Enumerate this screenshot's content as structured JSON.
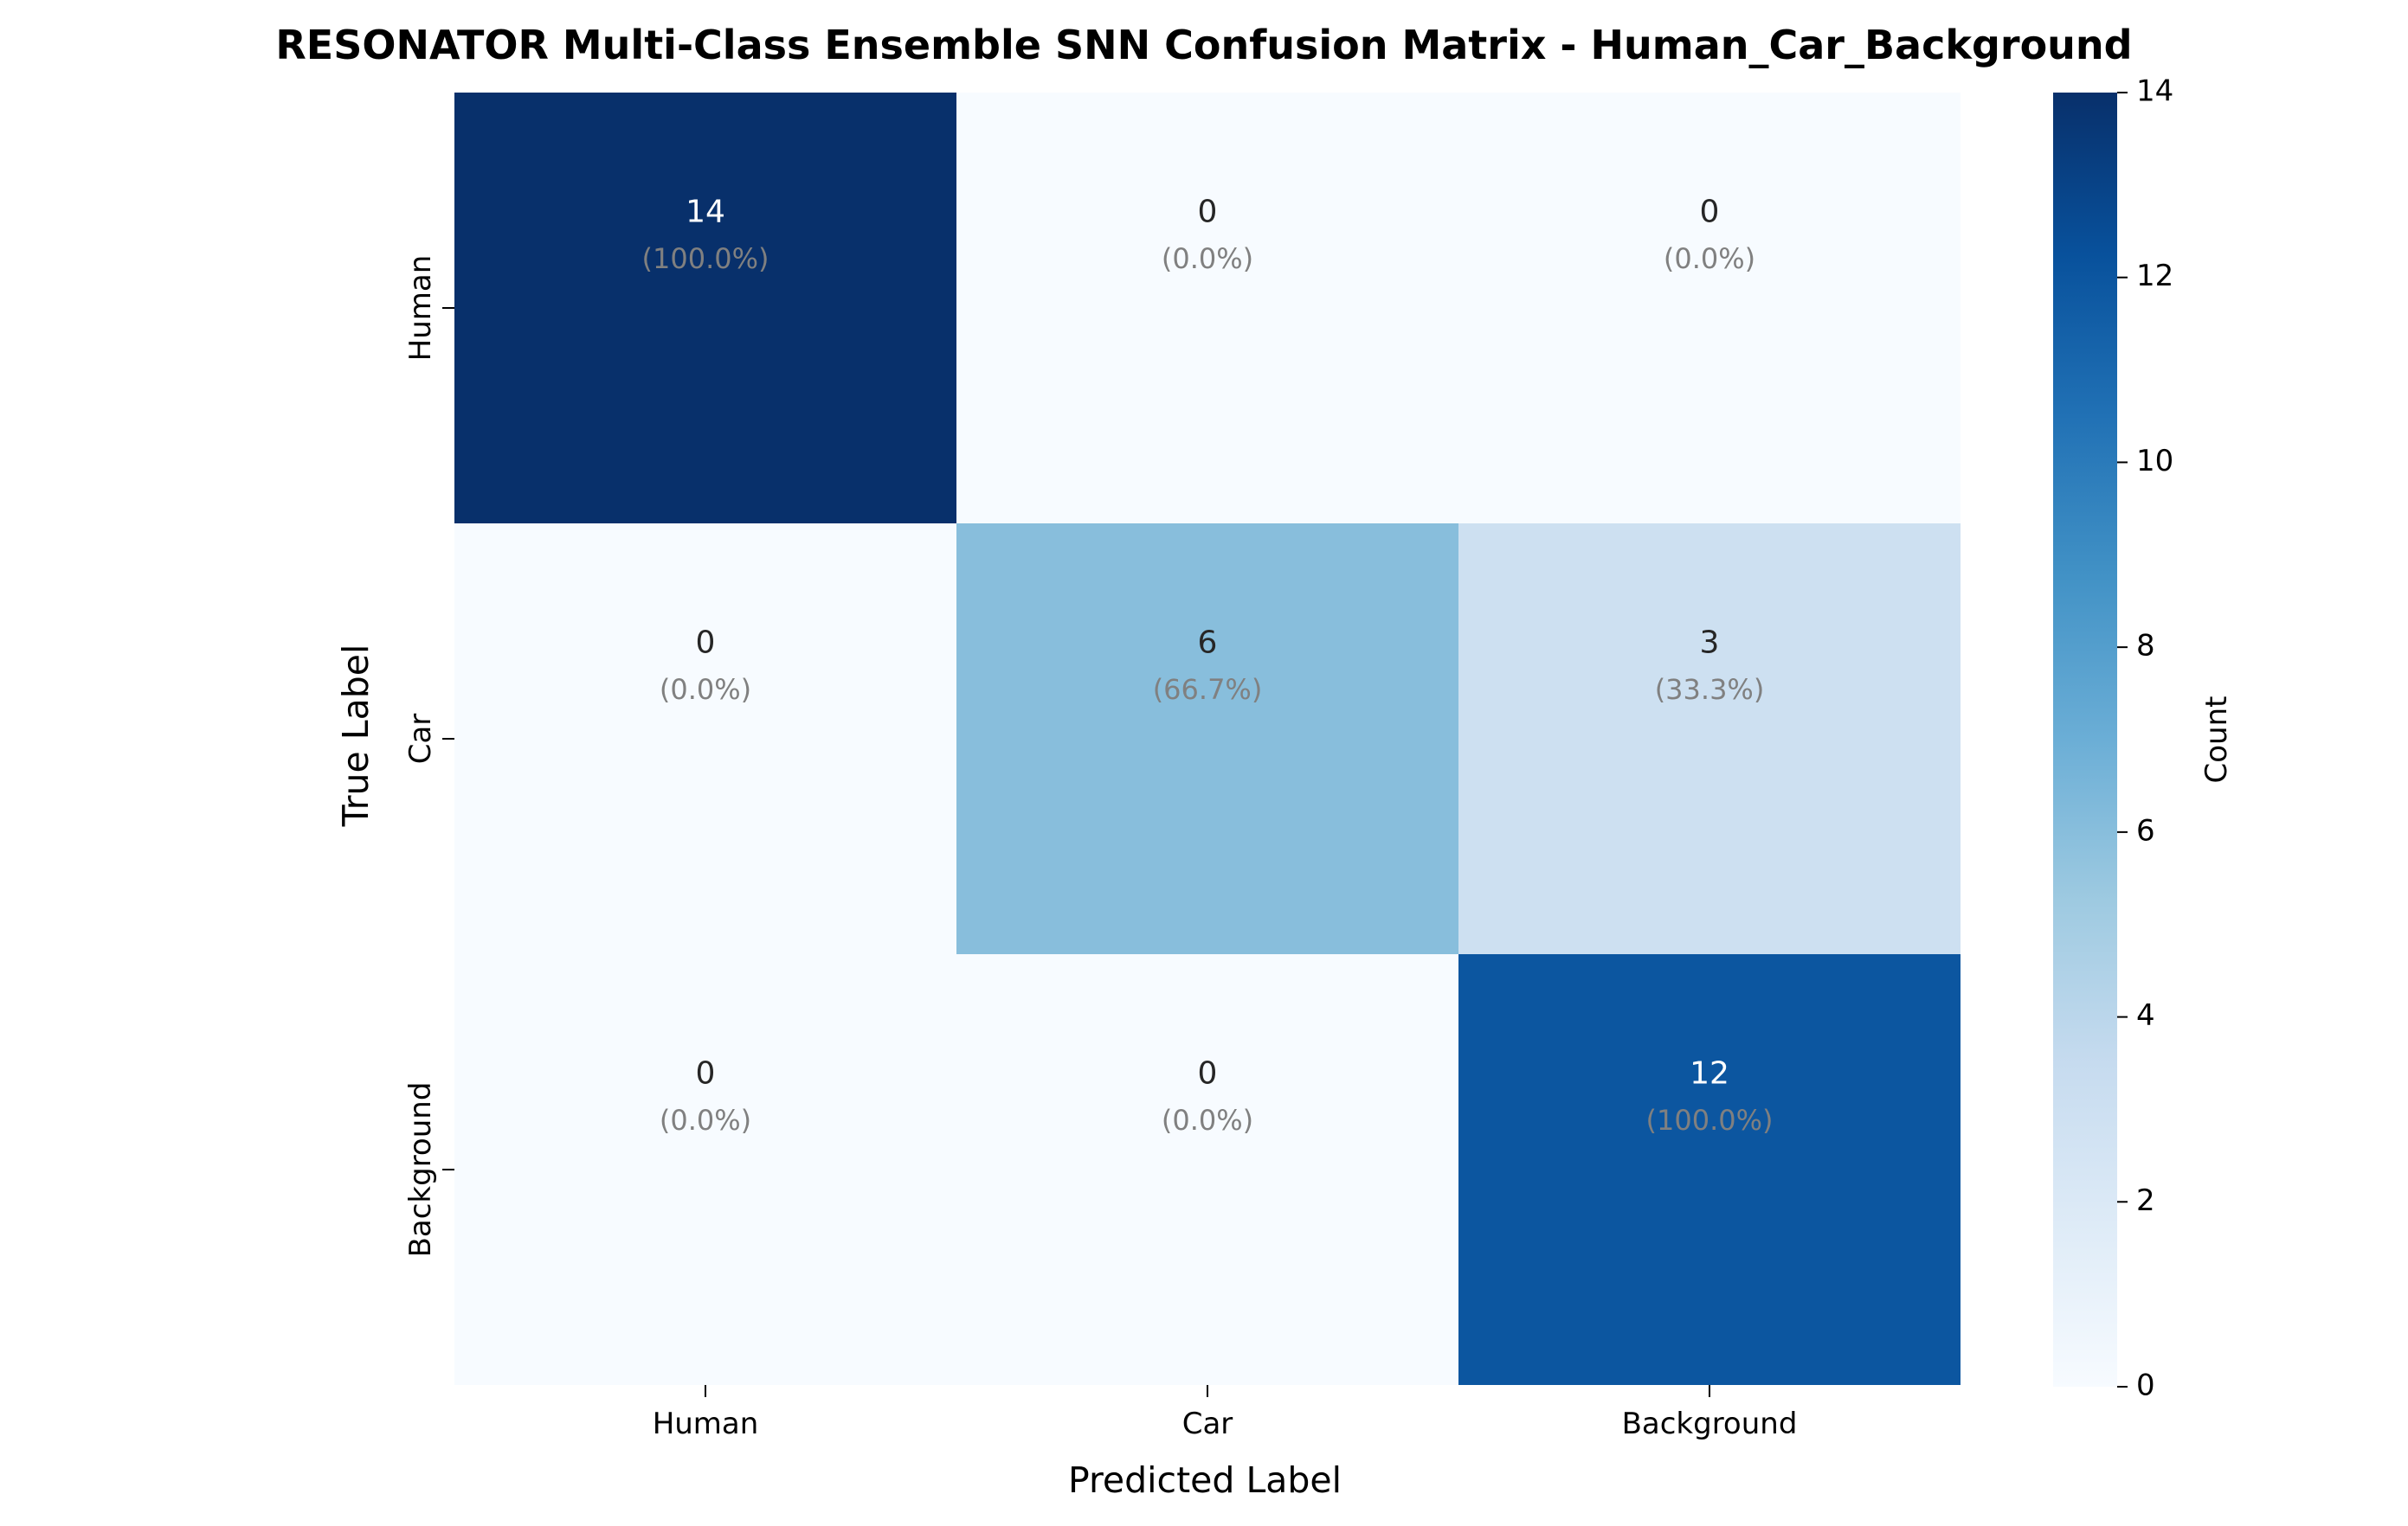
{
  "chart_data": {
    "type": "heatmap",
    "title": "RESONATOR Multi-Class Ensemble SNN Confusion Matrix - Human_Car_Background",
    "xlabel": "Predicted Label",
    "ylabel": "True Label",
    "x_categories": [
      "Human",
      "Car",
      "Background"
    ],
    "y_categories": [
      "Human",
      "Car",
      "Background"
    ],
    "values": [
      [
        14,
        0,
        0
      ],
      [
        0,
        6,
        3
      ],
      [
        0,
        0,
        12
      ]
    ],
    "cell_labels": [
      [
        "(100.0%)",
        "(0.0%)",
        "(0.0%)"
      ],
      [
        "(0.0%)",
        "(66.7%)",
        "(33.3%)"
      ],
      [
        "(0.0%)",
        "(0.0%)",
        "(100.0%)"
      ]
    ],
    "colorbar": {
      "label": "Count",
      "range": [
        0,
        14
      ],
      "ticks": [
        "0",
        "2",
        "4",
        "6",
        "8",
        "10",
        "12",
        "14"
      ],
      "colormap": "Blues"
    }
  }
}
